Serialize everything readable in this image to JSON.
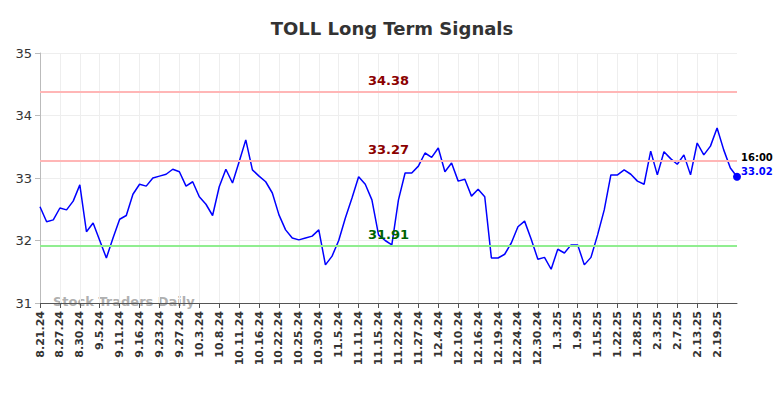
{
  "chart_data": {
    "type": "line",
    "title": "TOLL Long Term Signals",
    "watermark": "Stock Traders Daily",
    "categories": [
      "8.21.24",
      null,
      null,
      "8.27.24",
      null,
      null,
      "8.30.24",
      null,
      null,
      "9.5.24",
      null,
      null,
      "9.11.24",
      null,
      null,
      "9.16.24",
      null,
      null,
      "9.23.24",
      null,
      null,
      "9.27.24",
      null,
      null,
      "10.3.24",
      null,
      null,
      "10.8.24",
      null,
      null,
      "10.11.24",
      null,
      null,
      "10.16.24",
      null,
      null,
      "10.22.24",
      null,
      null,
      "10.25.24",
      null,
      null,
      "10.30.24",
      null,
      null,
      "11.5.24",
      null,
      null,
      "11.11.24",
      null,
      null,
      "11.15.24",
      null,
      null,
      "11.22.24",
      null,
      null,
      "11.27.24",
      null,
      null,
      "12.4.24",
      null,
      null,
      "12.10.24",
      null,
      null,
      "12.16.24",
      null,
      null,
      "12.19.24",
      null,
      null,
      "12.24.24",
      null,
      null,
      "12.30.24",
      null,
      null,
      "1.3.25",
      null,
      null,
      "1.9.25",
      null,
      null,
      "1.15.25",
      null,
      null,
      "1.22.25",
      null,
      null,
      "1.28.25",
      null,
      null,
      "2.3.25",
      null,
      null,
      "2.7.25",
      null,
      null,
      "2.13.25",
      null,
      null,
      "2.19.25",
      null,
      null,
      null
    ],
    "values": [
      32.54,
      32.3,
      32.33,
      32.52,
      32.49,
      32.63,
      32.89,
      32.14,
      32.28,
      32.0,
      31.72,
      32.04,
      32.34,
      32.4,
      32.74,
      32.9,
      32.87,
      33.0,
      33.03,
      33.06,
      33.14,
      33.1,
      32.87,
      32.94,
      32.7,
      32.58,
      32.4,
      32.86,
      33.14,
      32.92,
      33.26,
      33.61,
      33.13,
      33.03,
      32.94,
      32.76,
      32.41,
      32.17,
      32.04,
      32.01,
      32.04,
      32.07,
      32.17,
      31.61,
      31.75,
      32.0,
      32.36,
      32.68,
      33.02,
      32.9,
      32.65,
      32.09,
      32.0,
      31.93,
      32.65,
      33.08,
      33.08,
      33.19,
      33.4,
      33.33,
      33.48,
      33.1,
      33.24,
      32.95,
      32.98,
      32.71,
      32.82,
      32.7,
      31.72,
      31.72,
      31.78,
      31.96,
      32.22,
      32.31,
      32.02,
      31.7,
      31.73,
      31.54,
      31.86,
      31.8,
      31.93,
      31.93,
      31.61,
      31.73,
      32.09,
      32.49,
      33.05,
      33.05,
      33.13,
      33.06,
      32.95,
      32.9,
      33.43,
      33.05,
      33.42,
      33.31,
      33.22,
      33.37,
      33.05,
      33.56,
      33.37,
      33.51,
      33.8,
      33.45,
      33.16,
      33.02
    ],
    "color": "#0000ff",
    "last_point_label": "16:00",
    "reference_lines": [
      {
        "value": 34.38,
        "color": "#ffb6b6"
      },
      {
        "value": 33.27,
        "color": "#ffb6b6"
      },
      {
        "value": 31.91,
        "color": "#90ee90"
      }
    ],
    "ylim": [
      31,
      35
    ],
    "yticks": [
      31,
      32,
      33,
      34,
      35
    ],
    "grid": true
  }
}
